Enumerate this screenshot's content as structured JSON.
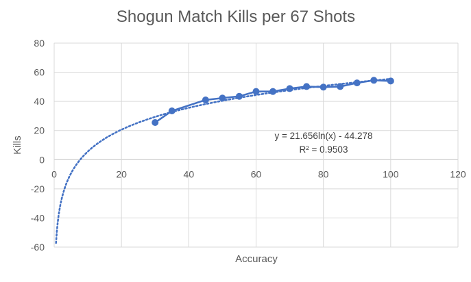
{
  "chart_data": {
    "type": "scatter",
    "title": "Shogun Match Kills per 67 Shots",
    "xlabel": "Accuracy",
    "ylabel": "Kills",
    "xlim": [
      0,
      120
    ],
    "ylim": [
      -60,
      80
    ],
    "x_ticks": [
      0,
      20,
      40,
      60,
      80,
      100,
      120
    ],
    "y_ticks": [
      -60,
      -40,
      -20,
      0,
      20,
      40,
      60,
      80
    ],
    "grid": true,
    "legend": "none",
    "series": [
      {
        "color": "#4472C4",
        "marker": "circle",
        "line": "solid",
        "x": [
          30,
          35,
          45,
          50,
          55,
          60,
          65,
          70,
          75,
          80,
          85,
          90,
          95,
          100
        ],
        "y": [
          25.5,
          33.5,
          41,
          42.3,
          43.5,
          46.8,
          46.8,
          48.8,
          50.2,
          49.8,
          50.2,
          52.7,
          54.5,
          54
        ]
      }
    ],
    "trendline": {
      "type": "logarithmic",
      "a": 21.656,
      "b": -44.278,
      "color": "#4472C4",
      "style": "dotted",
      "equation_label": "y = 21.656ln(x) - 44.278",
      "r2_label": "R² = 0.9503"
    }
  }
}
